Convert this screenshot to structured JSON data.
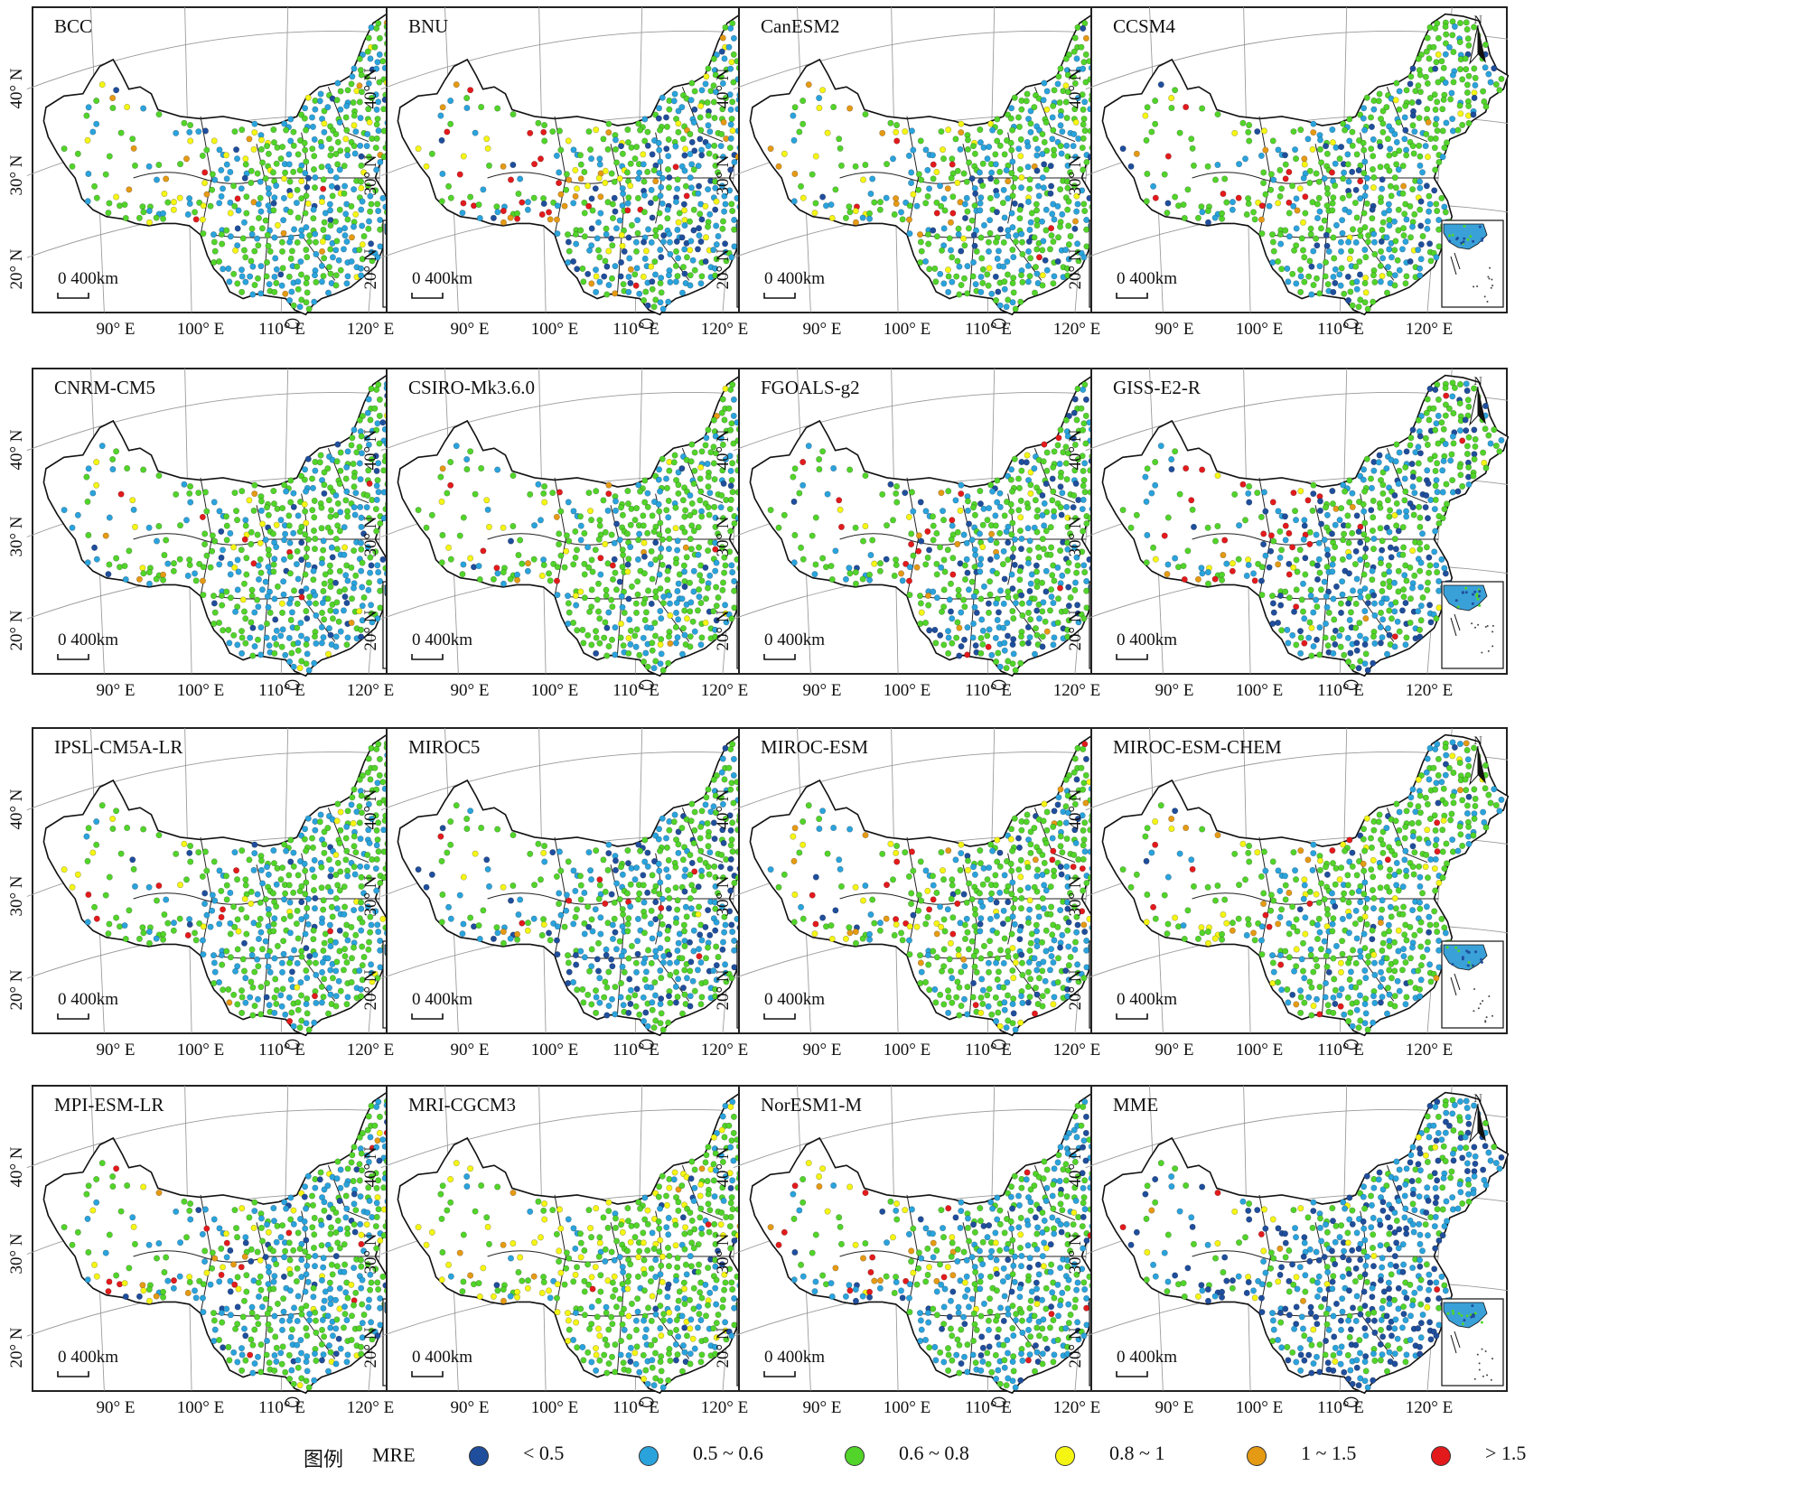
{
  "axes": {
    "lat_labels": [
      "40° N",
      "30° N",
      "20° N"
    ],
    "lon_labels": [
      "90° E",
      "100° E",
      "110° E",
      "120° E"
    ],
    "north_label": "N",
    "scale_label": "0 400km"
  },
  "panels": [
    {
      "title": "BCC",
      "pattern": {
        "green": 0.52,
        "blue": 0.3,
        "navy": 0.04,
        "yellow": 0.07,
        "orange": 0.04,
        "red": 0.03
      }
    },
    {
      "title": "BNU",
      "pattern": {
        "green": 0.4,
        "blue": 0.3,
        "navy": 0.1,
        "yellow": 0.08,
        "orange": 0.06,
        "red": 0.06
      }
    },
    {
      "title": "CanESM2",
      "pattern": {
        "green": 0.52,
        "blue": 0.3,
        "navy": 0.04,
        "yellow": 0.07,
        "orange": 0.05,
        "red": 0.02
      }
    },
    {
      "title": "CCSM4",
      "pattern": {
        "green": 0.58,
        "blue": 0.24,
        "navy": 0.07,
        "yellow": 0.05,
        "orange": 0.02,
        "red": 0.04
      }
    },
    {
      "title": "CNRM-CM5",
      "pattern": {
        "green": 0.56,
        "blue": 0.3,
        "navy": 0.04,
        "yellow": 0.06,
        "orange": 0.02,
        "red": 0.02
      }
    },
    {
      "title": "CSIRO-Mk3.6.0",
      "pattern": {
        "green": 0.62,
        "blue": 0.24,
        "navy": 0.04,
        "yellow": 0.05,
        "orange": 0.03,
        "red": 0.02
      }
    },
    {
      "title": "FGOALS-g2",
      "pattern": {
        "green": 0.58,
        "blue": 0.2,
        "navy": 0.12,
        "yellow": 0.03,
        "orange": 0.02,
        "red": 0.05
      }
    },
    {
      "title": "GISS-E2-R",
      "pattern": {
        "green": 0.48,
        "blue": 0.25,
        "navy": 0.15,
        "yellow": 0.04,
        "orange": 0.02,
        "red": 0.06
      }
    },
    {
      "title": "IPSL-CM5A-LR",
      "pattern": {
        "green": 0.6,
        "blue": 0.3,
        "navy": 0.03,
        "yellow": 0.04,
        "orange": 0.01,
        "red": 0.02
      }
    },
    {
      "title": "MIROC5",
      "pattern": {
        "green": 0.52,
        "blue": 0.3,
        "navy": 0.12,
        "yellow": 0.02,
        "orange": 0.01,
        "red": 0.03
      }
    },
    {
      "title": "MIROC-ESM",
      "pattern": {
        "green": 0.54,
        "blue": 0.22,
        "navy": 0.06,
        "yellow": 0.07,
        "orange": 0.05,
        "red": 0.06
      }
    },
    {
      "title": "MIROC-ESM-CHEM",
      "pattern": {
        "green": 0.56,
        "blue": 0.24,
        "navy": 0.03,
        "yellow": 0.07,
        "orange": 0.05,
        "red": 0.05
      }
    },
    {
      "title": "MPI-ESM-LR",
      "pattern": {
        "green": 0.46,
        "blue": 0.36,
        "navy": 0.04,
        "yellow": 0.08,
        "orange": 0.02,
        "red": 0.04
      }
    },
    {
      "title": "MRI-CGCM3",
      "pattern": {
        "green": 0.56,
        "blue": 0.18,
        "navy": 0.03,
        "yellow": 0.18,
        "orange": 0.03,
        "red": 0.02
      }
    },
    {
      "title": "NorESM1-M",
      "pattern": {
        "green": 0.4,
        "blue": 0.34,
        "navy": 0.08,
        "yellow": 0.06,
        "orange": 0.04,
        "red": 0.08
      }
    },
    {
      "title": "MME",
      "pattern": {
        "green": 0.26,
        "blue": 0.36,
        "navy": 0.32,
        "yellow": 0.03,
        "orange": 0.01,
        "red": 0.02
      }
    }
  ],
  "legend": {
    "title": "图例",
    "variable": "MRE",
    "items": [
      {
        "label": "< 0.5",
        "color": "#1f4e9c"
      },
      {
        "label": "0.5 ~ 0.6",
        "color": "#2aa3dc"
      },
      {
        "label": "0.6 ~ 0.8",
        "color": "#52d42a"
      },
      {
        "label": "0.8 ~ 1",
        "color": "#f5f514"
      },
      {
        "label": "1 ~ 1.5",
        "color": "#e59a14"
      },
      {
        "label": "> 1.5",
        "color": "#e31a1c"
      }
    ]
  }
}
